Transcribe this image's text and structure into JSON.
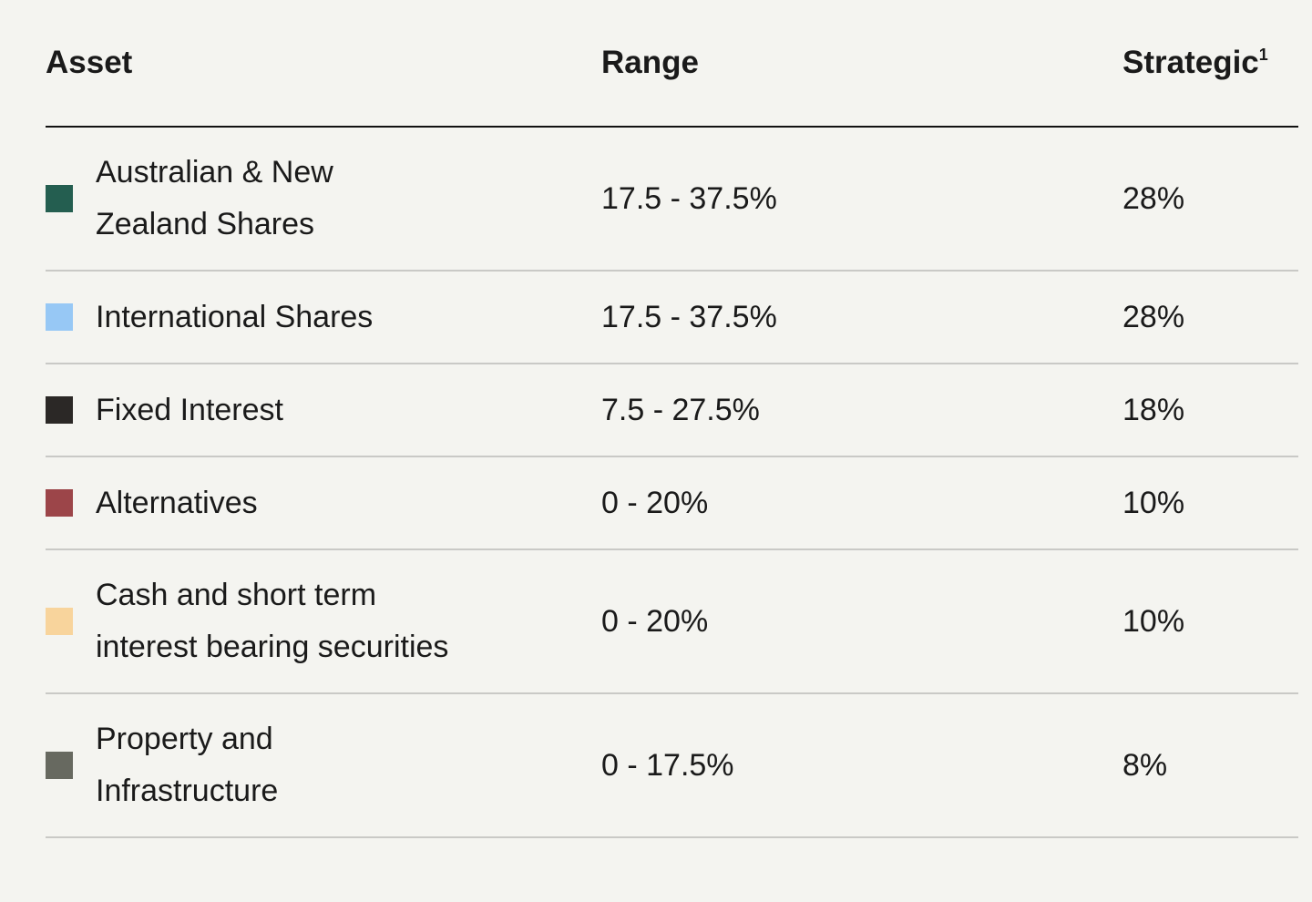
{
  "table": {
    "headers": [
      "Asset",
      "Range",
      "Strategic"
    ],
    "header_footnote": "1",
    "rows": [
      {
        "asset": "Australian & New Zealand Shares",
        "range": "17.5 - 37.5%",
        "strategic": "28%",
        "color": "#245e50"
      },
      {
        "asset": "International Shares",
        "range": "17.5 - 37.5%",
        "strategic": "28%",
        "color": "#97c8f5"
      },
      {
        "asset": "Fixed Interest",
        "range": "7.5 - 27.5%",
        "strategic": "18%",
        "color": "#2b2826"
      },
      {
        "asset": "Alternatives",
        "range": "0 - 20%",
        "strategic": "10%",
        "color": "#9c4549"
      },
      {
        "asset": "Cash and short term interest bearing securities",
        "range": "0 - 20%",
        "strategic": "10%",
        "color": "#f8d49c"
      },
      {
        "asset": "Property and Infrastructure",
        "range": "0 - 17.5%",
        "strategic": "8%",
        "color": "#676960"
      }
    ]
  }
}
